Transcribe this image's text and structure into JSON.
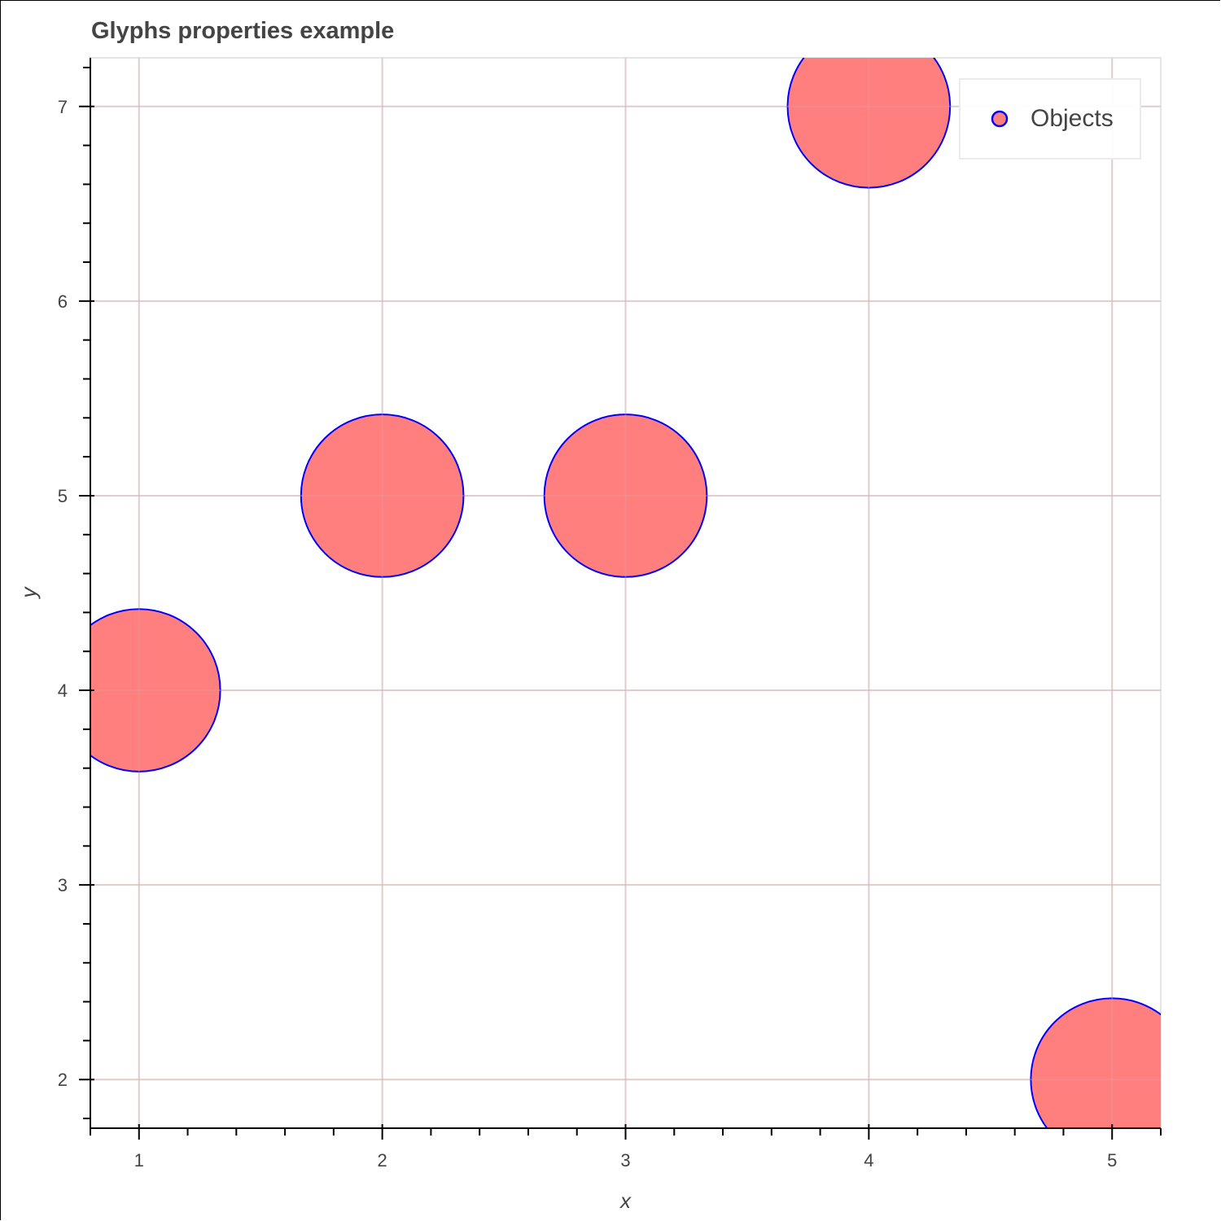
{
  "chart_data": {
    "type": "scatter",
    "title": "Glyphs properties example",
    "xlabel": "x",
    "ylabel": "y",
    "xlim": [
      0.8,
      5.2
    ],
    "ylim": [
      1.75,
      7.25
    ],
    "x_ticks": [
      1,
      2,
      3,
      4,
      5
    ],
    "y_ticks": [
      2,
      3,
      4,
      5,
      6,
      7
    ],
    "grid": true,
    "legend_position": "top_right",
    "series": [
      {
        "name": "Objects",
        "marker": "circle",
        "radius": 0.334,
        "fill_color": "#ff7f7f",
        "line_color": "#0000ff",
        "x": [
          1,
          2,
          3,
          4,
          5
        ],
        "y": [
          4,
          5,
          5,
          7,
          2
        ]
      }
    ]
  },
  "legend": {
    "items": [
      {
        "label": "Objects"
      }
    ]
  },
  "colors": {
    "fill": "#ff7f7f",
    "line": "#0000ff",
    "grid": "#e5e5e5",
    "text": "#444444"
  }
}
